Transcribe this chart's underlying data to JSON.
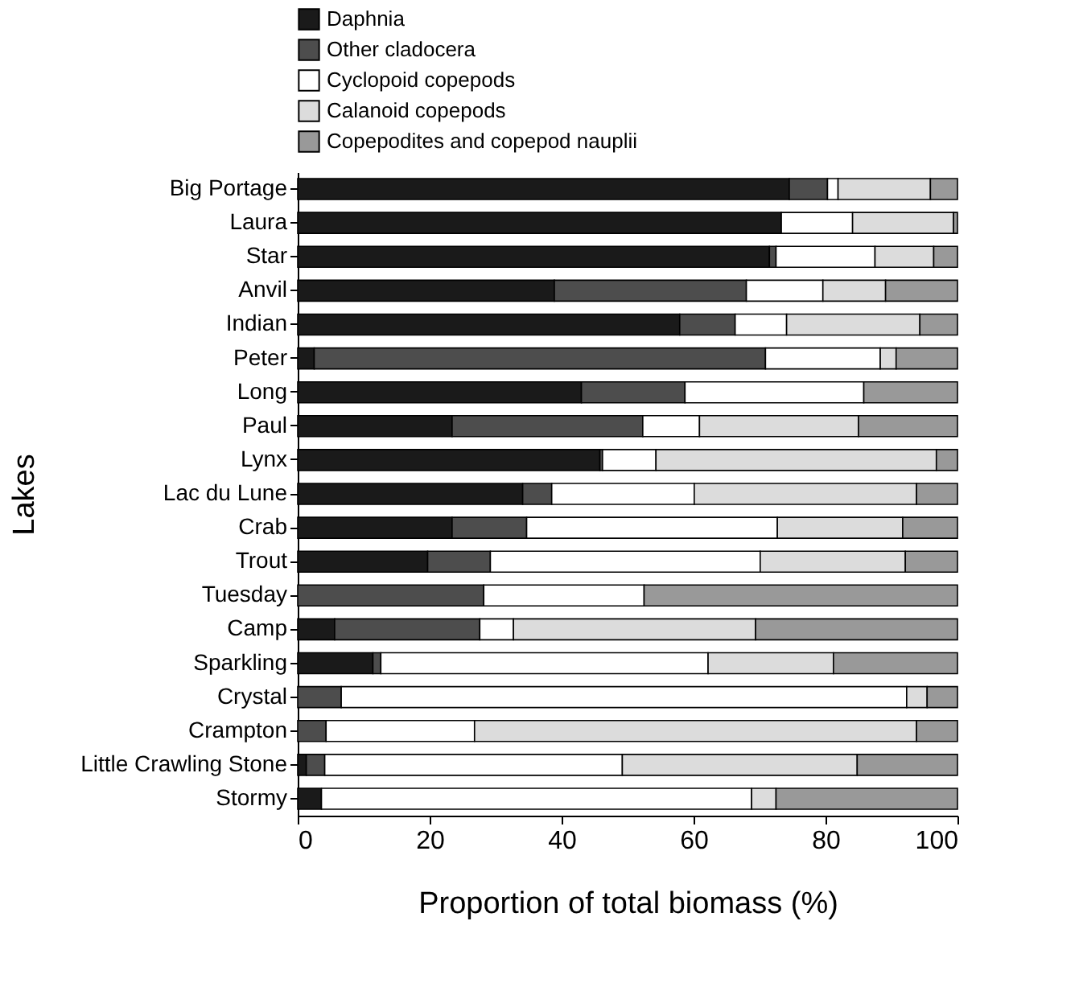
{
  "chart_data": {
    "type": "bar",
    "orientation": "horizontal",
    "stacked": true,
    "xlabel": "Proportion of total biomass (%)",
    "ylabel": "Lakes",
    "xlim": [
      0,
      100
    ],
    "xticks": [
      0,
      20,
      40,
      60,
      80,
      100
    ],
    "grid": false,
    "legend": "top",
    "categories": [
      "Big Portage",
      "Laura",
      "Star",
      "Anvil",
      "Indian",
      "Peter",
      "Long",
      "Paul",
      "Lynx",
      "Lac du Lune",
      "Crab",
      "Trout",
      "Tuesday",
      "Camp",
      "Sparkling",
      "Crystal",
      "Crampton",
      "Little Crawling Stone",
      "Stormy"
    ],
    "series": [
      {
        "name": "Daphnia",
        "color": "#1a1a1a",
        "values": [
          74.5,
          73.3,
          71.5,
          38.9,
          57.9,
          2.5,
          43.0,
          23.4,
          45.8,
          34.1,
          23.4,
          19.7,
          0,
          5.6,
          11.4,
          0,
          0,
          1.3,
          3.6
        ]
      },
      {
        "name": "Other cladocera",
        "color": "#4d4d4d",
        "values": [
          5.8,
          0,
          1.0,
          29.1,
          8.4,
          68.4,
          15.7,
          28.9,
          0.4,
          4.4,
          11.3,
          9.5,
          28.2,
          22.0,
          1.2,
          6.6,
          4.3,
          2.8,
          0
        ]
      },
      {
        "name": "Cyclopoid copepods",
        "color": "#ffffff",
        "values": [
          1.6,
          10.8,
          15.0,
          11.6,
          7.8,
          17.4,
          27.1,
          8.6,
          8.1,
          21.6,
          38.0,
          40.9,
          24.3,
          5.1,
          49.6,
          85.7,
          22.5,
          45.1,
          65.2
        ]
      },
      {
        "name": "Calanoid copepods",
        "color": "#dcdcdc",
        "values": [
          14.0,
          15.3,
          8.9,
          9.5,
          20.2,
          2.4,
          0,
          24.1,
          42.5,
          33.7,
          19.0,
          22.0,
          0,
          36.7,
          19.0,
          3.1,
          67.0,
          35.6,
          3.7
        ]
      },
      {
        "name": "Copepodites and copepod nauplii",
        "color": "#999999",
        "values": [
          4.1,
          0.6,
          3.6,
          10.9,
          5.7,
          9.3,
          14.2,
          15.0,
          3.2,
          6.2,
          8.3,
          7.9,
          47.5,
          30.6,
          18.8,
          4.6,
          6.2,
          15.2,
          27.5
        ]
      }
    ]
  }
}
